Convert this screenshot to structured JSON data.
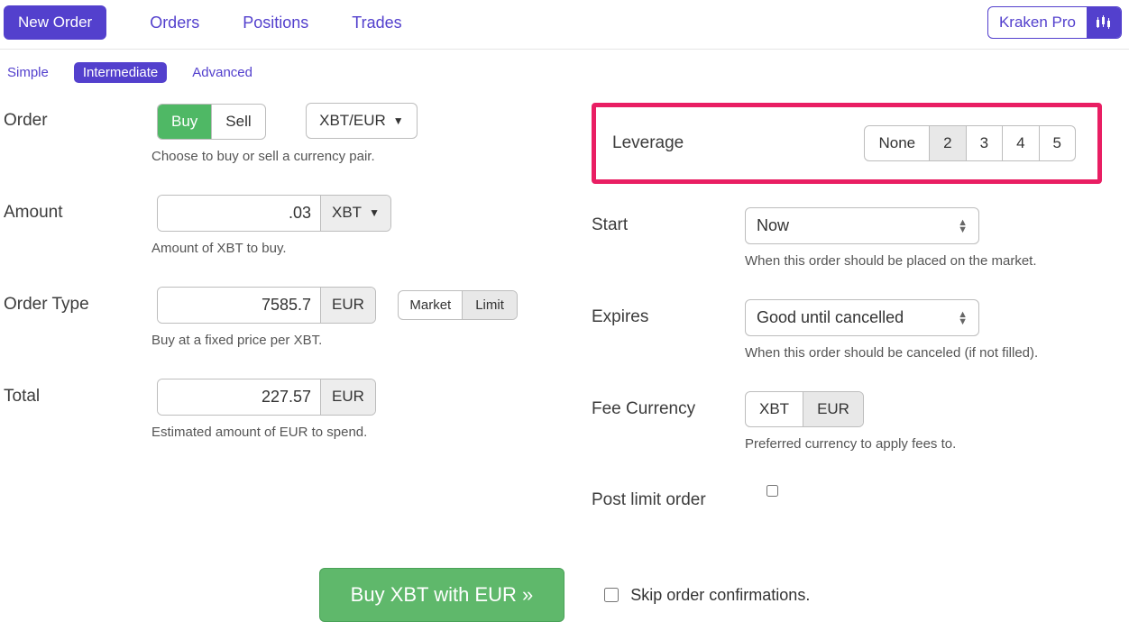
{
  "theme": {
    "primary": "#5340cd",
    "green": "#5fb86b",
    "green_dark": "#4aa258",
    "highlight_border": "#e91e63",
    "input_border": "#bdbdbd",
    "grey_fill": "#e8e8e8",
    "disabled_fill": "#f3f3f3",
    "text": "#333333",
    "hint": "#555555",
    "divider": "#e6e6e6",
    "background": "#ffffff"
  },
  "top_nav": {
    "new_order": "New Order",
    "orders": "Orders",
    "positions": "Positions",
    "trades": "Trades",
    "pro_label": "Kraken Pro"
  },
  "sub_nav": {
    "simple": "Simple",
    "intermediate": "Intermediate",
    "advanced": "Advanced",
    "active": "intermediate"
  },
  "order": {
    "label": "Order",
    "buy": "Buy",
    "sell": "Sell",
    "side_selected": "buy",
    "pair": "XBT/EUR",
    "hint": "Choose to buy or sell a currency pair."
  },
  "leverage": {
    "label": "Leverage",
    "options": [
      "None",
      "2",
      "3",
      "4",
      "5"
    ],
    "selected_index": 1
  },
  "amount": {
    "label": "Amount",
    "value": ".03",
    "unit": "XBT",
    "hint": "Amount of XBT to buy."
  },
  "order_type": {
    "label": "Order Type",
    "price": "7585.7",
    "price_unit": "EUR",
    "market": "Market",
    "limit": "Limit",
    "selected": "limit",
    "hint": "Buy at a fixed price per XBT."
  },
  "total": {
    "label": "Total",
    "value": "227.57",
    "unit": "EUR",
    "hint": "Estimated amount of EUR to spend."
  },
  "start": {
    "label": "Start",
    "value": "Now",
    "hint": "When this order should be placed on the market."
  },
  "expires": {
    "label": "Expires",
    "value": "Good until cancelled",
    "hint": "When this order should be canceled (if not filled)."
  },
  "fee_currency": {
    "label": "Fee Currency",
    "opt1": "XBT",
    "opt2": "EUR",
    "selected": "EUR",
    "hint": "Preferred currency to apply fees to."
  },
  "post_only": {
    "label": "Post limit order",
    "checked": false
  },
  "submit": {
    "label": "Buy XBT with EUR »",
    "skip_confirm": "Skip order confirmations.",
    "skip_checked": false
  }
}
